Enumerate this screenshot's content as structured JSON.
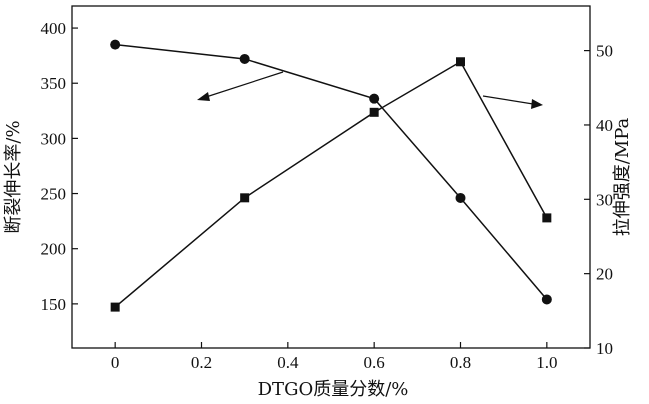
{
  "chart_data": {
    "type": "line",
    "x": [
      0,
      0.2,
      0.4,
      0.6,
      0.8,
      1.0
    ],
    "x_tick_labels": [
      "0",
      "0.2",
      "0.4",
      "0.6",
      "0.8",
      "1.0"
    ],
    "xlabel": "DTGO质量分数/%",
    "xlim": [
      -0.1,
      1.1
    ],
    "y_left": {
      "label": "断裂伸长率/%",
      "lim": [
        110,
        420
      ],
      "ticks": [
        150,
        200,
        250,
        300,
        350,
        400
      ],
      "tick_labels": [
        "150",
        "200",
        "250",
        "300",
        "350",
        "400"
      ]
    },
    "y_right": {
      "label": "拉伸强度/MPa",
      "lim": [
        10,
        56
      ],
      "ticks": [
        10,
        20,
        30,
        40,
        50
      ],
      "tick_labels": [
        "10",
        "20",
        "30",
        "40",
        "50"
      ]
    },
    "series": [
      {
        "axis": "left",
        "marker": "circle",
        "x": [
          0,
          0.3,
          0.6,
          0.8,
          1.0
        ],
        "values": [
          385,
          372,
          336,
          246,
          154
        ]
      },
      {
        "axis": "right",
        "marker": "square",
        "x": [
          0,
          0.3,
          0.6,
          0.8,
          1.0
        ],
        "values": [
          15.5,
          30.2,
          41.7,
          48.5,
          27.5
        ]
      }
    ],
    "grid": false,
    "legend": "none"
  }
}
